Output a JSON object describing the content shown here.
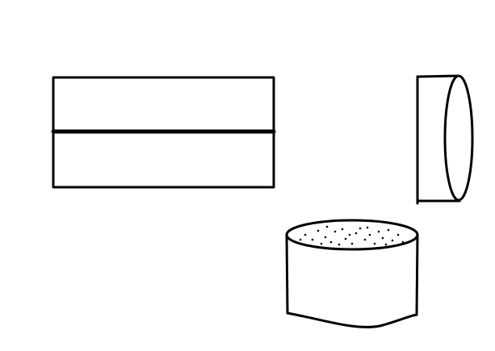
{
  "colors": {
    "background": "#ffffff",
    "stroke": "#000000"
  },
  "figures": [
    {
      "id": "rectangle-split",
      "shape": "rectangle divided horizontally into two equal halves",
      "parts": 2
    },
    {
      "id": "cylinder-side-view",
      "shape": "cylinder lying on its side, circular face on right"
    },
    {
      "id": "cylinder-dotted-top",
      "shape": "short upright cylinder with dotted top surface",
      "dotted_top": true
    }
  ]
}
